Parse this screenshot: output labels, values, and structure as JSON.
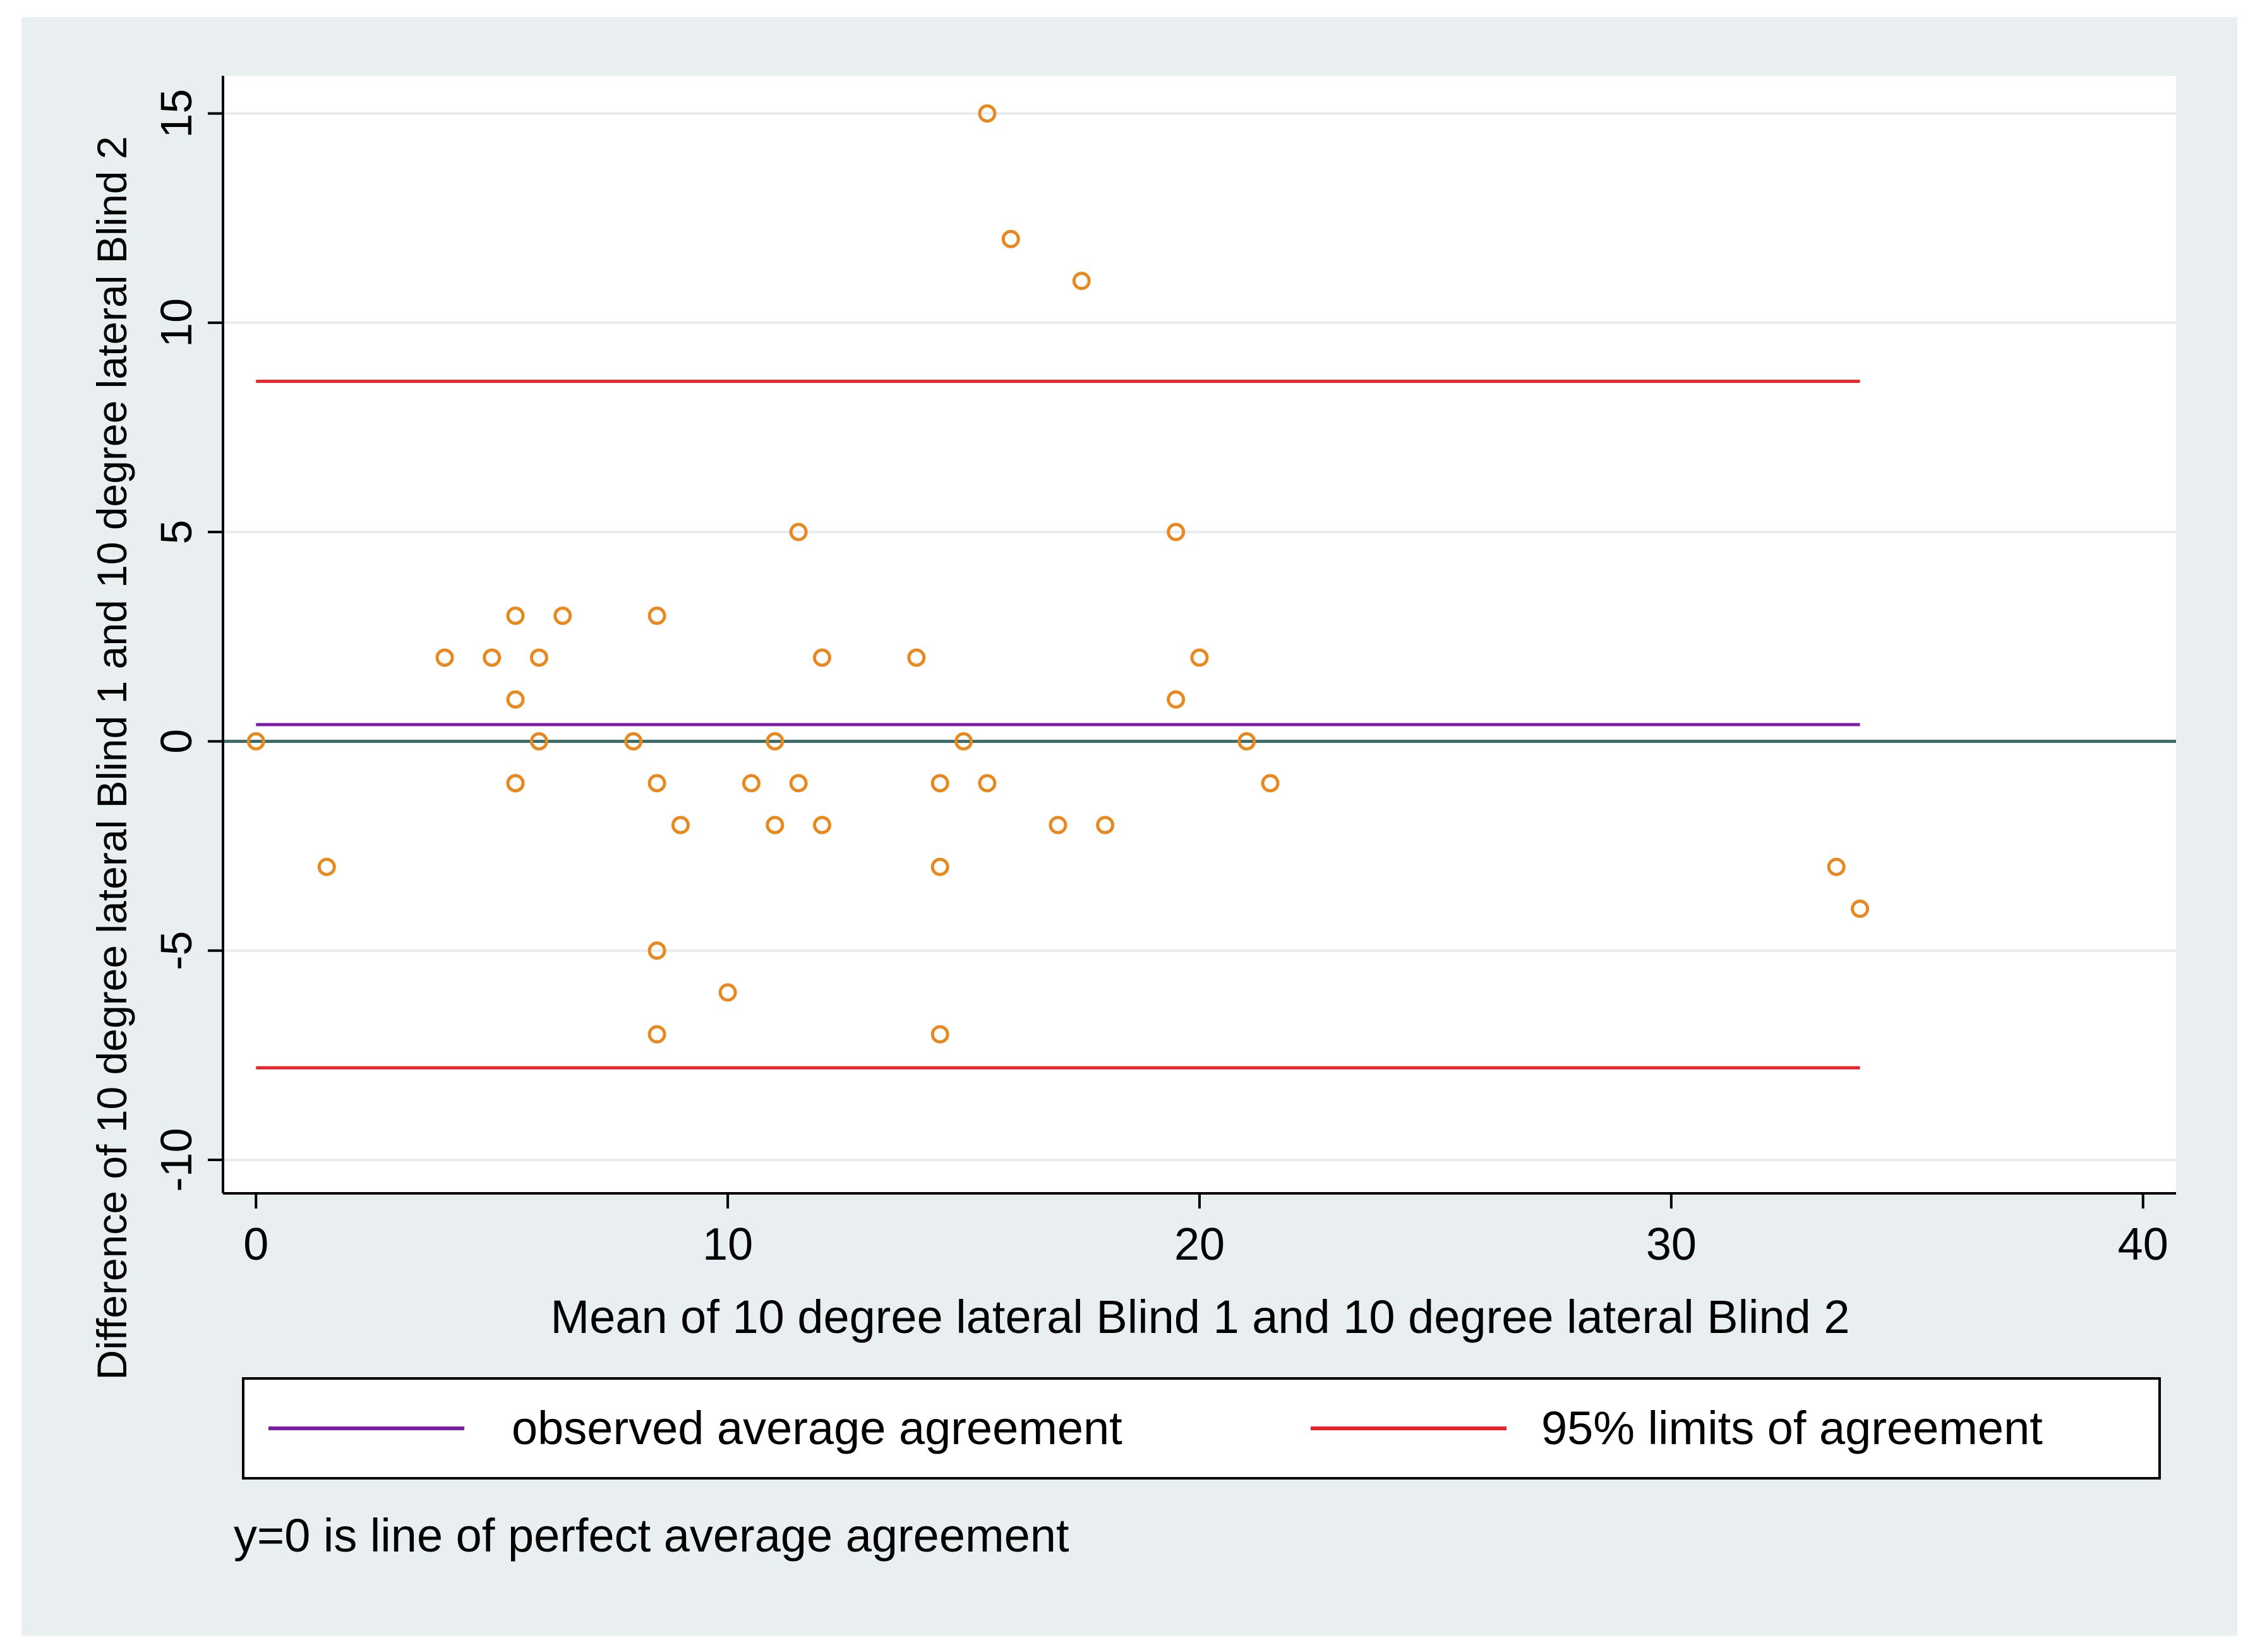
{
  "chart_data": {
    "type": "scatter",
    "title": "",
    "xlabel": "Mean of 10 degree lateral Blind 1 and 10 degree lateral Blind 2",
    "ylabel": "Difference of 10 degree lateral Blind 1 and 10 degree lateral Blind 2",
    "xlim": [
      -0.7,
      40.7
    ],
    "ylim": [
      -10.8,
      15.9
    ],
    "xticks": [
      0,
      10,
      20,
      30,
      40
    ],
    "yticks": [
      -10,
      -5,
      0,
      5,
      10,
      15
    ],
    "xtick_labels": [
      "0",
      "10",
      "20",
      "30",
      "40"
    ],
    "ytick_labels": [
      "-10",
      "-5",
      "0",
      "5",
      "10",
      "15"
    ],
    "grid": "horizontal",
    "points": {
      "x": [
        0,
        1.5,
        4,
        5,
        5.5,
        5.5,
        5.5,
        5.5,
        6,
        6,
        6.5,
        8,
        8.5,
        8.5,
        8.5,
        8.5,
        9,
        10,
        10.5,
        11,
        11,
        11.5,
        11.5,
        12,
        12,
        14,
        14.5,
        14.5,
        14.5,
        15,
        15.5,
        15.5,
        16,
        17,
        17.5,
        18,
        19.5,
        19.5,
        20,
        21,
        21.5,
        33.5,
        34
      ],
      "y": [
        0,
        -3,
        2,
        2,
        3,
        1,
        -1,
        -1,
        2,
        0,
        3,
        0,
        3,
        -1,
        -5,
        -7,
        -2,
        -6,
        -1,
        0,
        -2,
        5,
        -1,
        2,
        -2,
        2,
        -1,
        -3,
        -7,
        0,
        15,
        -1,
        12,
        -2,
        11,
        -2,
        5,
        1,
        2,
        0,
        -1,
        -3,
        -4
      ]
    },
    "reference_lines": [
      {
        "name": "observed average agreement",
        "y": 0.4,
        "x_range": [
          0,
          34
        ],
        "color": "#7b1fa2"
      },
      {
        "name": "95% upper limit of agreement",
        "y": 8.6,
        "x_range": [
          0,
          34
        ],
        "color": "#e8242b"
      },
      {
        "name": "95% lower limit of agreement",
        "y": -7.8,
        "x_range": [
          0,
          34
        ],
        "color": "#e8242b"
      },
      {
        "name": "perfect average agreement",
        "y": 0,
        "x_range": [
          -0.7,
          40.7
        ],
        "color": "#3f6e6a"
      }
    ],
    "legend": {
      "placement": "bottom",
      "entries": [
        {
          "label": "observed average agreement",
          "color": "#7b1fa2"
        },
        {
          "label": "95% limits of agreement",
          "color": "#e8242b"
        }
      ]
    },
    "note": "y=0 is line of perfect average agreement",
    "colors": {
      "marker": "#e8891f",
      "background": "#e9eef0",
      "plot_bg": "#ffffff",
      "grid": "#e7ecee",
      "axis": "#000000"
    }
  }
}
